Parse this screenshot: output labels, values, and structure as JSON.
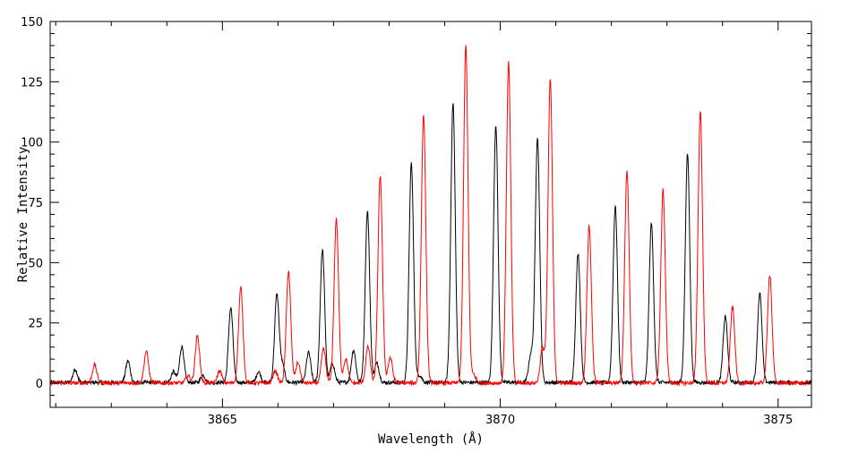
{
  "chart_data": {
    "type": "line",
    "title": "",
    "xlabel": "Wavelength (Å)",
    "ylabel": "Relative Intensity",
    "xlim": [
      3861.9,
      3875.6
    ],
    "ylim": [
      -10,
      150
    ],
    "xticks": [
      3865,
      3870,
      3875
    ],
    "xticks_minor_step": 1,
    "yticks": [
      0,
      25,
      50,
      75,
      100,
      125,
      150
    ],
    "grid": false,
    "series": [
      {
        "color": "#000000",
        "baseline": 0.3,
        "line_width_angstrom": 0.04,
        "lines": [
          {
            "x": 3862.35,
            "y": 5.5
          },
          {
            "x": 3863.3,
            "y": 9
          },
          {
            "x": 3864.12,
            "y": 4.5
          },
          {
            "x": 3864.27,
            "y": 15
          },
          {
            "x": 3864.65,
            "y": 3
          },
          {
            "x": 3865.15,
            "y": 31
          },
          {
            "x": 3865.65,
            "y": 4.5
          },
          {
            "x": 3865.98,
            "y": 36.5
          },
          {
            "x": 3866.08,
            "y": 7
          },
          {
            "x": 3866.55,
            "y": 12.5
          },
          {
            "x": 3866.8,
            "y": 55
          },
          {
            "x": 3866.98,
            "y": 8
          },
          {
            "x": 3867.36,
            "y": 13.5
          },
          {
            "x": 3867.61,
            "y": 71
          },
          {
            "x": 3867.78,
            "y": 8
          },
          {
            "x": 3868.4,
            "y": 91
          },
          {
            "x": 3868.55,
            "y": 3
          },
          {
            "x": 3869.15,
            "y": 116
          },
          {
            "x": 3869.92,
            "y": 107
          },
          {
            "x": 3870.55,
            "y": 11.5
          },
          {
            "x": 3870.67,
            "y": 102
          },
          {
            "x": 3871.4,
            "y": 53.5
          },
          {
            "x": 3872.07,
            "y": 73
          },
          {
            "x": 3872.72,
            "y": 66
          },
          {
            "x": 3873.37,
            "y": 95
          },
          {
            "x": 3874.05,
            "y": 27.5
          },
          {
            "x": 3874.67,
            "y": 37
          }
        ]
      },
      {
        "color": "#ff0000",
        "baseline": 0.1,
        "line_width_angstrom": 0.04,
        "lines": [
          {
            "x": 3862.7,
            "y": 7.5
          },
          {
            "x": 3863.63,
            "y": 13
          },
          {
            "x": 3864.38,
            "y": 3
          },
          {
            "x": 3864.55,
            "y": 19.5
          },
          {
            "x": 3864.95,
            "y": 5
          },
          {
            "x": 3865.33,
            "y": 39.5
          },
          {
            "x": 3865.95,
            "y": 5
          },
          {
            "x": 3866.19,
            "y": 46.5
          },
          {
            "x": 3866.36,
            "y": 8.5
          },
          {
            "x": 3866.82,
            "y": 14
          },
          {
            "x": 3867.05,
            "y": 68
          },
          {
            "x": 3867.22,
            "y": 10
          },
          {
            "x": 3867.62,
            "y": 15
          },
          {
            "x": 3867.84,
            "y": 86
          },
          {
            "x": 3868.02,
            "y": 10.5
          },
          {
            "x": 3868.62,
            "y": 111
          },
          {
            "x": 3869.38,
            "y": 140
          },
          {
            "x": 3869.52,
            "y": 3.5
          },
          {
            "x": 3870.15,
            "y": 133
          },
          {
            "x": 3870.76,
            "y": 14.5
          },
          {
            "x": 3870.9,
            "y": 126
          },
          {
            "x": 3871.6,
            "y": 65
          },
          {
            "x": 3872.28,
            "y": 88
          },
          {
            "x": 3872.93,
            "y": 80
          },
          {
            "x": 3873.6,
            "y": 113
          },
          {
            "x": 3874.18,
            "y": 31.5
          },
          {
            "x": 3874.85,
            "y": 45
          }
        ]
      }
    ]
  }
}
